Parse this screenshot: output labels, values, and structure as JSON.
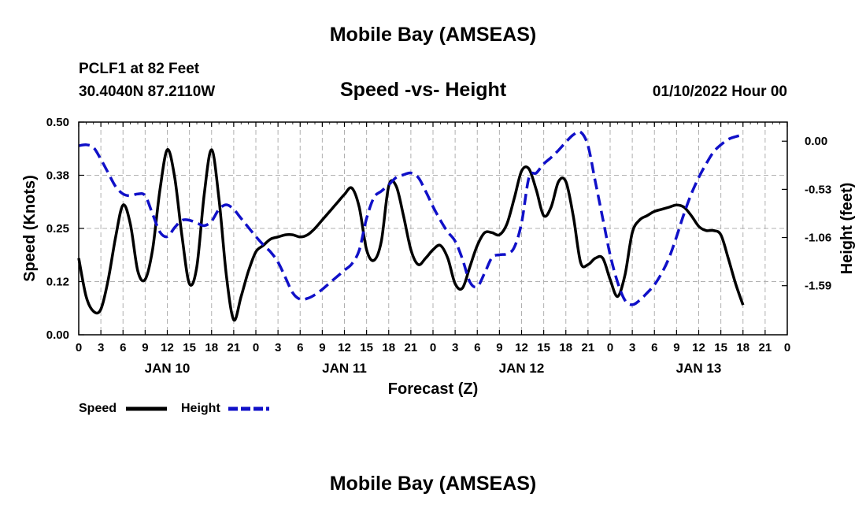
{
  "header": {
    "title": "Mobile Bay (AMSEAS)",
    "station": "PCLF1 at 82 Feet",
    "coordinates": "30.4040N  87.2110W",
    "subtitle": "Speed -vs- Height",
    "datetime": "01/10/2022 Hour 00"
  },
  "footer": {
    "title": "Mobile Bay (AMSEAS)"
  },
  "legend": [
    {
      "label": "Speed",
      "color": "#000000",
      "style": "solid"
    },
    {
      "label": "Height",
      "color": "#1010c8",
      "style": "dashed"
    }
  ],
  "chart_data": {
    "type": "line",
    "xlabel": "Forecast (Z)",
    "ylabel_left": "Speed (Knots)",
    "ylabel_right": "Height (feet)",
    "x_range_hours": [
      0,
      96
    ],
    "x_tick_labels": [
      "0",
      "3",
      "6",
      "9",
      "12",
      "15",
      "18",
      "21",
      "0",
      "3",
      "6",
      "9",
      "12",
      "15",
      "18",
      "21",
      "0",
      "3",
      "6",
      "9",
      "12",
      "15",
      "18",
      "21",
      "0",
      "3",
      "6",
      "9",
      "12",
      "15",
      "18",
      "21",
      "0"
    ],
    "day_labels": [
      {
        "label": "JAN 10",
        "hour": 12
      },
      {
        "label": "JAN 11",
        "hour": 36
      },
      {
        "label": "JAN 12",
        "hour": 60
      },
      {
        "label": "JAN 13",
        "hour": 84
      }
    ],
    "y_left": {
      "range": [
        0,
        0.5
      ],
      "ticks": [
        0.0,
        0.125,
        0.25,
        0.375,
        0.5
      ],
      "tick_labels": [
        "0.00",
        "0.12",
        "0.25",
        "0.38",
        "0.50"
      ]
    },
    "y_right": {
      "range": [
        -2.13,
        0.21
      ],
      "ticks": [
        0.0,
        -0.53,
        -1.06,
        -1.59
      ],
      "tick_labels": [
        "0.00",
        "-0.53",
        "-1.06",
        "-1.59"
      ]
    },
    "grid": true,
    "series": [
      {
        "name": "Speed",
        "axis": "left",
        "color": "#000000",
        "dash": false,
        "points": [
          [
            0,
            0.18
          ],
          [
            1,
            0.09
          ],
          [
            2,
            0.055
          ],
          [
            3,
            0.06
          ],
          [
            4,
            0.13
          ],
          [
            5,
            0.23
          ],
          [
            6,
            0.305
          ],
          [
            7,
            0.26
          ],
          [
            8,
            0.15
          ],
          [
            9,
            0.13
          ],
          [
            10,
            0.2
          ],
          [
            11,
            0.34
          ],
          [
            12,
            0.435
          ],
          [
            13,
            0.37
          ],
          [
            14,
            0.23
          ],
          [
            15,
            0.12
          ],
          [
            16,
            0.16
          ],
          [
            17,
            0.33
          ],
          [
            18,
            0.435
          ],
          [
            19,
            0.32
          ],
          [
            20,
            0.14
          ],
          [
            21,
            0.035
          ],
          [
            22,
            0.09
          ],
          [
            23,
            0.15
          ],
          [
            24,
            0.195
          ],
          [
            25,
            0.21
          ],
          [
            26,
            0.225
          ],
          [
            27,
            0.23
          ],
          [
            28,
            0.235
          ],
          [
            29,
            0.235
          ],
          [
            30,
            0.23
          ],
          [
            31,
            0.235
          ],
          [
            32,
            0.25
          ],
          [
            33,
            0.27
          ],
          [
            34,
            0.29
          ],
          [
            35,
            0.31
          ],
          [
            36,
            0.33
          ],
          [
            37,
            0.345
          ],
          [
            38,
            0.3
          ],
          [
            39,
            0.2
          ],
          [
            40,
            0.175
          ],
          [
            41,
            0.22
          ],
          [
            42,
            0.35
          ],
          [
            43,
            0.35
          ],
          [
            44,
            0.28
          ],
          [
            45,
            0.2
          ],
          [
            46,
            0.165
          ],
          [
            47,
            0.18
          ],
          [
            48,
            0.2
          ],
          [
            49,
            0.21
          ],
          [
            50,
            0.18
          ],
          [
            51,
            0.12
          ],
          [
            52,
            0.11
          ],
          [
            53,
            0.16
          ],
          [
            54,
            0.21
          ],
          [
            55,
            0.24
          ],
          [
            56,
            0.24
          ],
          [
            57,
            0.235
          ],
          [
            58,
            0.26
          ],
          [
            59,
            0.32
          ],
          [
            60,
            0.385
          ],
          [
            61,
            0.39
          ],
          [
            62,
            0.34
          ],
          [
            63,
            0.28
          ],
          [
            64,
            0.3
          ],
          [
            65,
            0.36
          ],
          [
            66,
            0.36
          ],
          [
            67,
            0.28
          ],
          [
            68,
            0.17
          ],
          [
            69,
            0.165
          ],
          [
            70,
            0.18
          ],
          [
            71,
            0.18
          ],
          [
            72,
            0.13
          ],
          [
            73,
            0.09
          ],
          [
            74,
            0.14
          ],
          [
            75,
            0.24
          ],
          [
            76,
            0.27
          ],
          [
            77,
            0.28
          ],
          [
            78,
            0.29
          ],
          [
            79,
            0.295
          ],
          [
            80,
            0.3
          ],
          [
            81,
            0.305
          ],
          [
            82,
            0.3
          ],
          [
            83,
            0.28
          ],
          [
            84,
            0.255
          ],
          [
            85,
            0.245
          ],
          [
            86,
            0.245
          ],
          [
            87,
            0.235
          ],
          [
            88,
            0.18
          ],
          [
            89,
            0.12
          ],
          [
            90,
            0.07
          ]
        ]
      },
      {
        "name": "Height",
        "axis": "right",
        "color": "#1010c8",
        "dash": true,
        "points": [
          [
            0,
            -0.05
          ],
          [
            1,
            -0.04
          ],
          [
            2,
            -0.07
          ],
          [
            3,
            -0.2
          ],
          [
            4,
            -0.35
          ],
          [
            5,
            -0.5
          ],
          [
            6,
            -0.58
          ],
          [
            7,
            -0.6
          ],
          [
            8,
            -0.58
          ],
          [
            9,
            -0.6
          ],
          [
            10,
            -0.8
          ],
          [
            11,
            -1.0
          ],
          [
            12,
            -1.05
          ],
          [
            13,
            -0.95
          ],
          [
            14,
            -0.87
          ],
          [
            15,
            -0.87
          ],
          [
            16,
            -0.9
          ],
          [
            17,
            -0.93
          ],
          [
            18,
            -0.88
          ],
          [
            19,
            -0.75
          ],
          [
            20,
            -0.7
          ],
          [
            21,
            -0.75
          ],
          [
            22,
            -0.85
          ],
          [
            23,
            -0.95
          ],
          [
            24,
            -1.05
          ],
          [
            25,
            -1.14
          ],
          [
            26,
            -1.22
          ],
          [
            27,
            -1.33
          ],
          [
            28,
            -1.5
          ],
          [
            29,
            -1.67
          ],
          [
            30,
            -1.74
          ],
          [
            31,
            -1.73
          ],
          [
            32,
            -1.69
          ],
          [
            33,
            -1.63
          ],
          [
            34,
            -1.56
          ],
          [
            35,
            -1.49
          ],
          [
            36,
            -1.42
          ],
          [
            37,
            -1.35
          ],
          [
            38,
            -1.2
          ],
          [
            39,
            -0.85
          ],
          [
            40,
            -0.62
          ],
          [
            41,
            -0.55
          ],
          [
            42,
            -0.48
          ],
          [
            43,
            -0.4
          ],
          [
            44,
            -0.37
          ],
          [
            45,
            -0.35
          ],
          [
            46,
            -0.4
          ],
          [
            47,
            -0.55
          ],
          [
            48,
            -0.72
          ],
          [
            49,
            -0.87
          ],
          [
            50,
            -1.0
          ],
          [
            51,
            -1.1
          ],
          [
            52,
            -1.3
          ],
          [
            53,
            -1.55
          ],
          [
            54,
            -1.6
          ],
          [
            55,
            -1.45
          ],
          [
            56,
            -1.28
          ],
          [
            57,
            -1.25
          ],
          [
            58,
            -1.24
          ],
          [
            59,
            -1.17
          ],
          [
            60,
            -0.9
          ],
          [
            61,
            -0.4
          ],
          [
            62,
            -0.35
          ],
          [
            63,
            -0.25
          ],
          [
            64,
            -0.18
          ],
          [
            65,
            -0.1
          ],
          [
            66,
            -0.01
          ],
          [
            67,
            0.07
          ],
          [
            68,
            0.1
          ],
          [
            69,
            -0.05
          ],
          [
            70,
            -0.45
          ],
          [
            71,
            -0.85
          ],
          [
            72,
            -1.25
          ],
          [
            73,
            -1.55
          ],
          [
            74,
            -1.75
          ],
          [
            75,
            -1.8
          ],
          [
            76,
            -1.75
          ],
          [
            77,
            -1.67
          ],
          [
            78,
            -1.58
          ],
          [
            79,
            -1.45
          ],
          [
            80,
            -1.28
          ],
          [
            81,
            -1.05
          ],
          [
            82,
            -0.8
          ],
          [
            83,
            -0.58
          ],
          [
            84,
            -0.4
          ],
          [
            85,
            -0.25
          ],
          [
            86,
            -0.12
          ],
          [
            87,
            -0.04
          ],
          [
            88,
            0.02
          ],
          [
            89,
            0.05
          ],
          [
            90,
            0.07
          ]
        ]
      }
    ]
  }
}
